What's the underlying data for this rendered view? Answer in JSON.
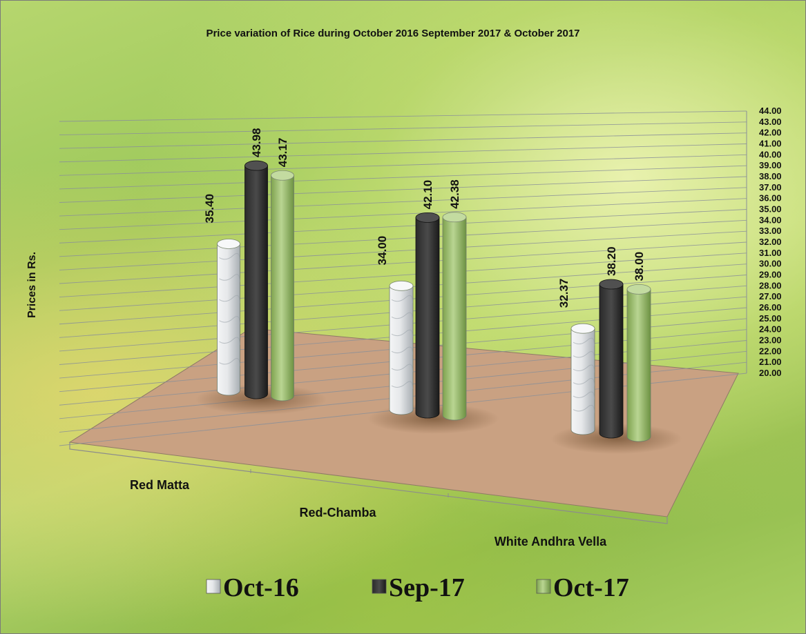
{
  "chart_data": {
    "type": "bar",
    "title": "Price variation of Rice during  October 2016  September  2017 &  October 2017",
    "ylabel": "Prices in Rs.",
    "xlabel": "",
    "ylim": [
      20,
      44
    ],
    "ytick_step": 1,
    "categories": [
      "Red Matta",
      "Red-Chamba",
      "White Andhra Vella"
    ],
    "series": [
      {
        "name": "Oct-16",
        "values": [
          35.4,
          34.0,
          32.37
        ],
        "color": "#dfe3e6"
      },
      {
        "name": "Sep-17",
        "values": [
          43.98,
          42.1,
          38.2
        ],
        "color": "#3a3a3a"
      },
      {
        "name": "Oct-17",
        "values": [
          43.17,
          42.38,
          38.0
        ],
        "color": "#a6c77a"
      }
    ],
    "data_labels": [
      [
        "35.40",
        "34.00",
        "32.37"
      ],
      [
        "43.98",
        "42.10",
        "38.20"
      ],
      [
        "43.17",
        "42.38",
        "38.00"
      ]
    ],
    "legend_position": "bottom",
    "grid": true,
    "floor_color": "#c9a182"
  }
}
